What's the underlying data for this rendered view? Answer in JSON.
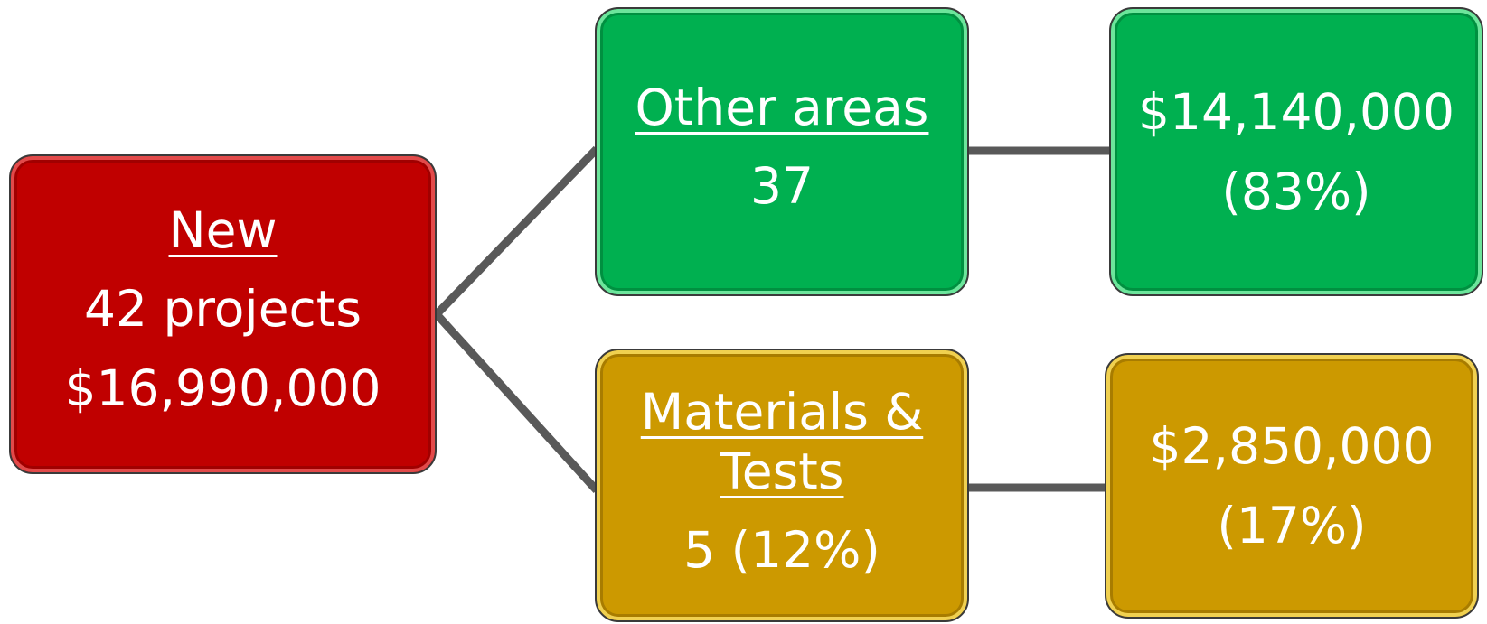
{
  "nodes": [
    {
      "title": "New",
      "lines": [
        "42 projects",
        "$16,990,000"
      ]
    },
    {
      "title": "Other areas",
      "lines": [
        "37"
      ]
    },
    {
      "lines": [
        "$14,140,000",
        "(83%)"
      ]
    },
    {
      "title": "Materials & Tests",
      "lines": [
        "5 (12%)"
      ]
    },
    {
      "lines": [
        "$2,850,000",
        "(17%)"
      ]
    }
  ]
}
